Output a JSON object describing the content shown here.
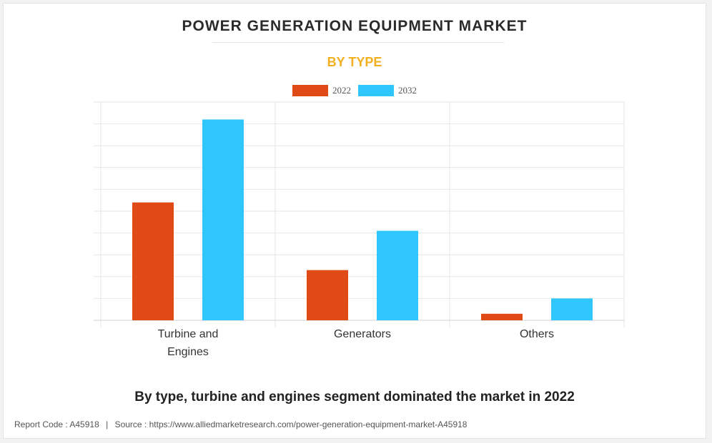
{
  "header": {
    "title": "POWER GENERATION EQUIPMENT MARKET",
    "subtitle": "BY TYPE"
  },
  "caption": "By type, turbine and engines segment dominated the market in 2022",
  "footer": {
    "report_code": "Report Code : A45918",
    "separator": "|",
    "source": "Source : https://www.alliedmarketresearch.com/power-generation-equipment-market-A45918"
  },
  "colors": {
    "series_2022": "#e04a17",
    "series_2032": "#2ec6fb",
    "subtitle": "#f2b01e"
  },
  "chart_data": {
    "type": "bar",
    "title": "POWER GENERATION EQUIPMENT MARKET",
    "subtitle": "BY TYPE",
    "categories": [
      [
        "Turbine and",
        "Engines"
      ],
      [
        "Generators"
      ],
      [
        "Others"
      ]
    ],
    "series": [
      {
        "name": "2022",
        "values": [
          54,
          23,
          3
        ]
      },
      {
        "name": "2032",
        "values": [
          92,
          41,
          10
        ]
      }
    ],
    "ylim": [
      0,
      100
    ],
    "grid": true,
    "legend": "top-center",
    "xlabel": "",
    "ylabel": ""
  }
}
